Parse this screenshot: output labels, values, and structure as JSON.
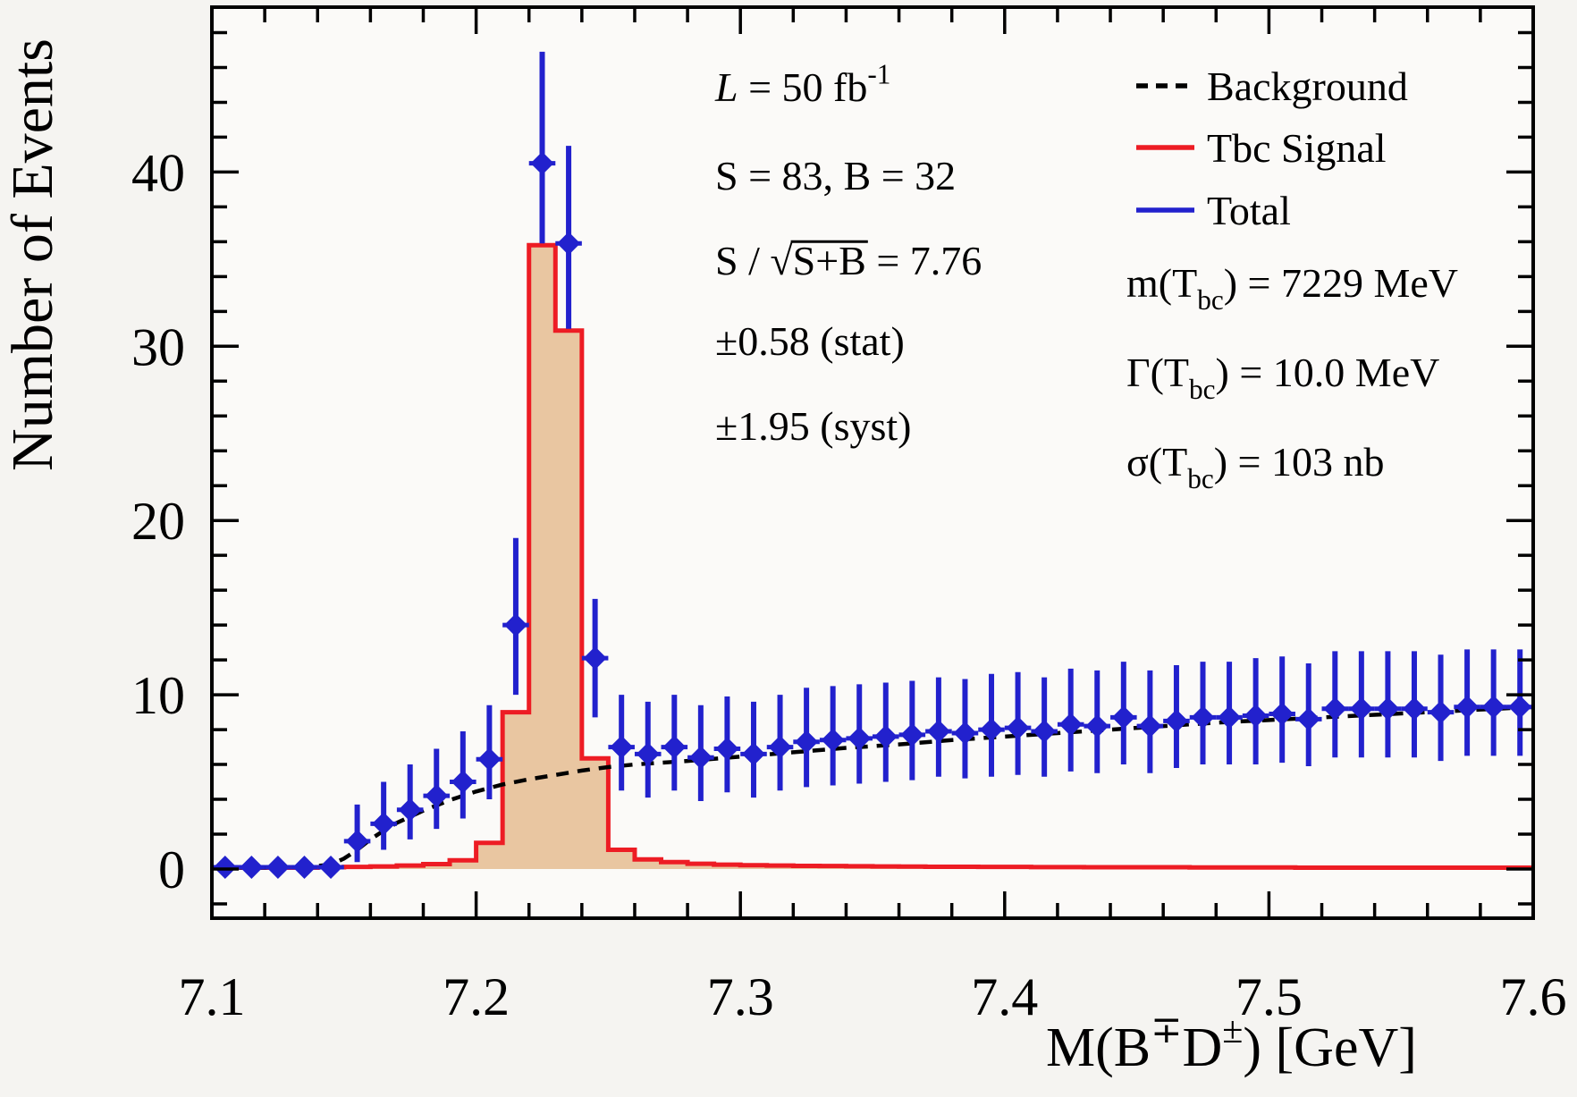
{
  "figure": {
    "bg_color": "#f5f4f1",
    "plot_bg_color": "#fbfaf8",
    "frame_color": "#000000"
  },
  "chart_data": {
    "type": "histogram+errorbars",
    "xlabel_parts": [
      {
        "t": "M(B"
      },
      {
        "t": "∓",
        "sup": true
      },
      {
        "t": "D"
      },
      {
        "t": "±",
        "sup": true
      },
      {
        "t": ") [GeV]"
      }
    ],
    "ylabel": "Number of Events",
    "xlim": [
      7.1,
      7.6
    ],
    "ylim": [
      -2.8,
      49.5
    ],
    "bin_width": 0.01,
    "x_major_ticks": [
      7.1,
      7.2,
      7.3,
      7.4,
      7.5,
      7.6
    ],
    "x_tick_labels": [
      "7.1",
      "7.2",
      "7.3",
      "7.4",
      "7.5",
      "7.6"
    ],
    "x_minor_step": 0.02,
    "y_major_ticks": [
      0,
      10,
      20,
      30,
      40
    ],
    "y_tick_labels": [
      "0",
      "10",
      "20",
      "30",
      "40"
    ],
    "y_minor_step": 2,
    "grid": false,
    "legend_position": "top-right",
    "series": [
      {
        "name": "Total",
        "kind": "points",
        "color": "#2221cd",
        "x": [
          7.105,
          7.115,
          7.125,
          7.135,
          7.145,
          7.155,
          7.165,
          7.175,
          7.185,
          7.195,
          7.205,
          7.215,
          7.225,
          7.235,
          7.245,
          7.255,
          7.265,
          7.275,
          7.285,
          7.295,
          7.305,
          7.315,
          7.325,
          7.335,
          7.345,
          7.355,
          7.365,
          7.375,
          7.385,
          7.395,
          7.405,
          7.415,
          7.425,
          7.435,
          7.445,
          7.455,
          7.465,
          7.475,
          7.485,
          7.495,
          7.505,
          7.515,
          7.525,
          7.535,
          7.545,
          7.555,
          7.565,
          7.575,
          7.585,
          7.595
        ],
        "y": [
          0.1,
          0.1,
          0.1,
          0.1,
          0.1,
          1.6,
          2.6,
          3.4,
          4.2,
          5.0,
          6.3,
          14.0,
          40.5,
          35.9,
          12.1,
          7.0,
          6.6,
          7.0,
          6.4,
          6.9,
          6.6,
          7.0,
          7.3,
          7.4,
          7.5,
          7.6,
          7.7,
          7.9,
          7.8,
          8.0,
          8.1,
          7.9,
          8.3,
          8.2,
          8.7,
          8.2,
          8.5,
          8.7,
          8.7,
          8.8,
          8.9,
          8.6,
          9.2,
          9.2,
          9.2,
          9.2,
          9.0,
          9.3,
          9.3,
          9.3
        ],
        "err_up": [
          0,
          0,
          0,
          0,
          0,
          2.1,
          2.4,
          2.6,
          2.7,
          2.9,
          3.1,
          5.0,
          6.4,
          5.6,
          3.4,
          3.0,
          3.0,
          3.0,
          3.0,
          3.0,
          3.0,
          3.0,
          3.1,
          3.1,
          3.1,
          3.1,
          3.1,
          3.1,
          3.1,
          3.2,
          3.2,
          3.1,
          3.2,
          3.2,
          3.2,
          3.2,
          3.2,
          3.2,
          3.2,
          3.3,
          3.3,
          3.2,
          3.3,
          3.3,
          3.3,
          3.3,
          3.3,
          3.3,
          3.3,
          3.3
        ],
        "err_dn": [
          0,
          0,
          0,
          0,
          0,
          1.2,
          1.5,
          1.7,
          1.9,
          2.1,
          2.3,
          4.0,
          4.6,
          4.9,
          3.4,
          2.5,
          2.5,
          2.5,
          2.5,
          2.5,
          2.5,
          2.5,
          2.6,
          2.6,
          2.6,
          2.6,
          2.6,
          2.6,
          2.6,
          2.7,
          2.7,
          2.6,
          2.7,
          2.7,
          2.7,
          2.7,
          2.7,
          2.7,
          2.7,
          2.8,
          2.8,
          2.7,
          2.8,
          2.8,
          2.8,
          2.8,
          2.8,
          2.8,
          2.8,
          2.8
        ]
      },
      {
        "name": "Tbc Signal",
        "kind": "step-histogram",
        "color": "#ed1c24",
        "fill": "#e9c6a1",
        "bin_start": 7.1,
        "values": [
          0.08,
          0.08,
          0.08,
          0.08,
          0.1,
          0.12,
          0.15,
          0.2,
          0.28,
          0.5,
          1.5,
          9.0,
          35.8,
          30.9,
          6.35,
          1.1,
          0.55,
          0.4,
          0.3,
          0.25,
          0.22,
          0.2,
          0.18,
          0.17,
          0.16,
          0.15,
          0.14,
          0.13,
          0.13,
          0.12,
          0.12,
          0.11,
          0.11,
          0.1,
          0.1,
          0.1,
          0.1,
          0.09,
          0.09,
          0.09,
          0.09,
          0.08,
          0.08,
          0.08,
          0.08,
          0.08,
          0.08,
          0.08,
          0.08,
          0.08
        ]
      },
      {
        "name": "Background",
        "kind": "dashed-curve",
        "color": "#000000",
        "x": [
          7.1,
          7.12,
          7.135,
          7.145,
          7.15,
          7.155,
          7.16,
          7.165,
          7.17,
          7.175,
          7.18,
          7.185,
          7.19,
          7.195,
          7.2,
          7.205,
          7.21,
          7.215,
          7.22,
          7.23,
          7.24,
          7.25,
          7.26,
          7.27,
          7.28,
          7.3,
          7.32,
          7.34,
          7.36,
          7.38,
          7.4,
          7.42,
          7.44,
          7.46,
          7.48,
          7.5,
          7.52,
          7.54,
          7.56,
          7.58,
          7.6
        ],
        "y": [
          0.08,
          0.08,
          0.1,
          0.25,
          0.6,
          1.1,
          1.7,
          2.2,
          2.65,
          3.0,
          3.35,
          3.65,
          3.95,
          4.2,
          4.45,
          4.65,
          4.85,
          5.0,
          5.15,
          5.4,
          5.65,
          5.85,
          6.0,
          6.1,
          6.2,
          6.45,
          6.7,
          6.95,
          7.15,
          7.4,
          7.6,
          7.8,
          8.0,
          8.2,
          8.4,
          8.55,
          8.7,
          8.85,
          9.0,
          9.15,
          9.3
        ]
      }
    ]
  },
  "legend": {
    "entries": [
      {
        "label": "Background",
        "style": "dashed",
        "color": "#000000"
      },
      {
        "label": "Tbc Signal",
        "style": "solid",
        "color": "#ed1c24"
      },
      {
        "label": "Total",
        "style": "solid",
        "color": "#2221cd"
      }
    ]
  },
  "annotations": {
    "left_stats": [
      {
        "name": "luminosity",
        "parts": [
          {
            "t": "L",
            "i": true
          },
          {
            "t": " = 50 fb"
          },
          {
            "t": "-1",
            "sup": true
          }
        ]
      },
      {
        "name": "yields",
        "parts": [
          {
            "t": "S = 83, B = 32"
          }
        ]
      },
      {
        "name": "significance",
        "parts": [
          {
            "t": "S / "
          },
          {
            "t": "√"
          },
          {
            "t": "S+B",
            "overline": true
          },
          {
            "t": " = 7.76"
          }
        ]
      },
      {
        "name": "stat-error",
        "parts": [
          {
            "t": "±0.58 (stat)"
          }
        ]
      },
      {
        "name": "syst-error",
        "parts": [
          {
            "t": "±1.95 (syst)"
          }
        ]
      }
    ],
    "right_stats": [
      {
        "name": "mass",
        "parts": [
          {
            "t": "m(T"
          },
          {
            "t": "bc",
            "sub": true
          },
          {
            "t": ") = 7229 MeV"
          }
        ]
      },
      {
        "name": "width",
        "parts": [
          {
            "t": "Γ(T"
          },
          {
            "t": "bc",
            "sub": true
          },
          {
            "t": ") = 10.0 MeV"
          }
        ]
      },
      {
        "name": "cross-section",
        "parts": [
          {
            "t": "σ(T"
          },
          {
            "t": "bc",
            "sub": true
          },
          {
            "t": ") = 103 nb"
          }
        ]
      }
    ]
  }
}
